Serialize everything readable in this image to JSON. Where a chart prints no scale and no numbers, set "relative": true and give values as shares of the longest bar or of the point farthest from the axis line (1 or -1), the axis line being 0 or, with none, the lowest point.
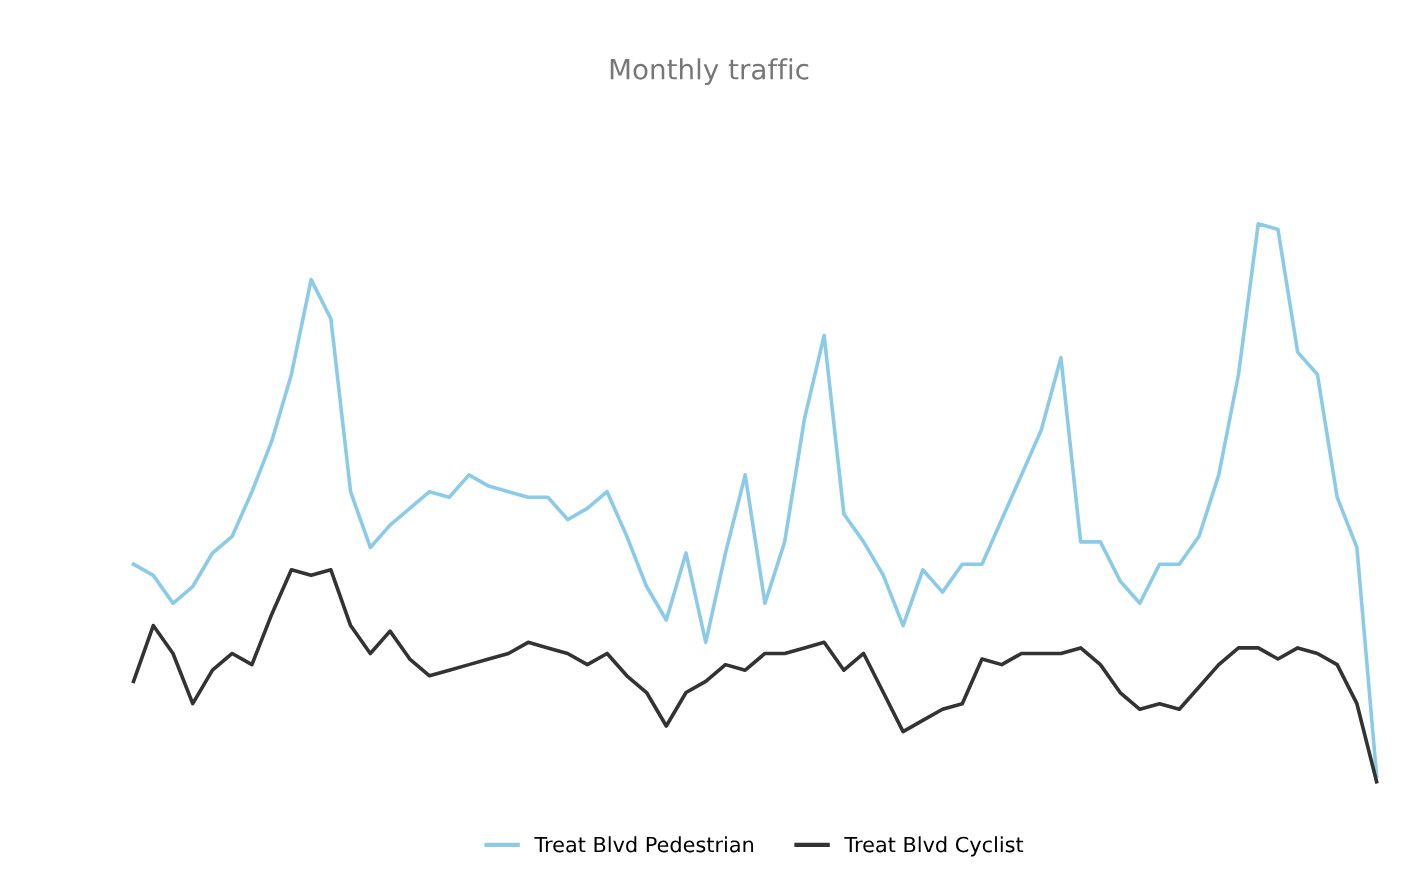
{
  "chart_data": {
    "type": "line",
    "title": "Monthly traffic",
    "relative": true,
    "categories": [
      null,
      null,
      null,
      null,
      null,
      null,
      null,
      null,
      null,
      null,
      null,
      null,
      null,
      null,
      null,
      null,
      null,
      null,
      null,
      null,
      null,
      null,
      null,
      null,
      null,
      null,
      null,
      null,
      null,
      null,
      null,
      null,
      null,
      null,
      null,
      null,
      null,
      null,
      null,
      null,
      null,
      null,
      null,
      null,
      null,
      null,
      null,
      null,
      null,
      null,
      null,
      null,
      null,
      null,
      null,
      null,
      null,
      null,
      null,
      null,
      null,
      null,
      null,
      null
    ],
    "series": [
      {
        "name": "Treat Blvd Pedestrian",
        "color": "#8ccbe8",
        "values": [
          0.39,
          0.37,
          0.32,
          0.35,
          0.41,
          0.44,
          0.52,
          0.61,
          0.73,
          0.9,
          0.83,
          0.52,
          0.42,
          0.46,
          0.49,
          0.52,
          0.51,
          0.55,
          0.53,
          0.52,
          0.51,
          0.51,
          0.47,
          0.49,
          0.52,
          0.44,
          0.35,
          0.29,
          0.41,
          0.25,
          0.41,
          0.55,
          0.32,
          0.43,
          0.65,
          0.8,
          0.48,
          0.43,
          0.37,
          0.28,
          0.38,
          0.34,
          0.39,
          0.39,
          0.47,
          0.55,
          0.63,
          0.76,
          0.43,
          0.43,
          0.36,
          0.32,
          0.39,
          0.39,
          0.44,
          0.55,
          0.73,
          1,
          0.99,
          0.77,
          0.73,
          0.51,
          0.42,
          0.01
        ]
      },
      {
        "name": "Treat Blvd Cyclist",
        "color": "#333333",
        "values": [
          0.18,
          0.28,
          0.23,
          0.14,
          0.2,
          0.23,
          0.21,
          0.3,
          0.38,
          0.37,
          0.38,
          0.28,
          0.23,
          0.27,
          0.22,
          0.19,
          0.2,
          0.21,
          0.22,
          0.23,
          0.25,
          0.24,
          0.23,
          0.21,
          0.23,
          0.19,
          0.16,
          0.1,
          0.16,
          0.18,
          0.21,
          0.2,
          0.23,
          0.23,
          0.24,
          0.25,
          0.2,
          0.23,
          0.16,
          0.09,
          0.11,
          0.13,
          0.14,
          0.22,
          0.21,
          0.23,
          0.23,
          0.23,
          0.24,
          0.21,
          0.16,
          0.13,
          0.14,
          0.13,
          0.17,
          0.21,
          0.24,
          0.24,
          0.22,
          0.24,
          0.23,
          0.21,
          0.14,
          0
        ]
      }
    ],
    "legend": "bottom",
    "grid": false,
    "marker": "none",
    "line_style": "solid"
  }
}
